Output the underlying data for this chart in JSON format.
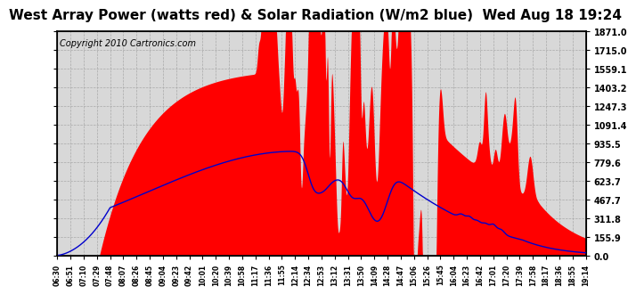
{
  "title": "West Array Power (watts red) & Solar Radiation (W/m2 blue)  Wed Aug 18 19:24",
  "copyright": "Copyright 2010 Cartronics.com",
  "y_ticks": [
    0.0,
    155.9,
    311.8,
    467.7,
    623.7,
    779.6,
    935.5,
    1091.4,
    1247.3,
    1403.2,
    1559.1,
    1715.0,
    1871.0
  ],
  "x_labels": [
    "06:30",
    "06:51",
    "07:10",
    "07:29",
    "07:48",
    "08:07",
    "08:26",
    "08:45",
    "09:04",
    "09:23",
    "09:42",
    "10:01",
    "10:20",
    "10:39",
    "10:58",
    "11:17",
    "11:36",
    "11:55",
    "12:14",
    "12:34",
    "12:53",
    "13:12",
    "13:31",
    "13:50",
    "14:09",
    "14:28",
    "14:47",
    "15:06",
    "15:26",
    "15:45",
    "16:04",
    "16:23",
    "16:42",
    "17:01",
    "17:20",
    "17:39",
    "17:58",
    "18:17",
    "18:36",
    "18:55",
    "19:14"
  ],
  "ymax": 1871.0,
  "bg_color": "#ffffff",
  "plot_bg": "#d8d8d8",
  "grid_color": "#aaaaaa",
  "red_color": "#ff0000",
  "blue_color": "#0000cc",
  "title_fontsize": 11,
  "copyright_fontsize": 7,
  "tick_fontsize": 7,
  "xlabel_fontsize": 5.5
}
